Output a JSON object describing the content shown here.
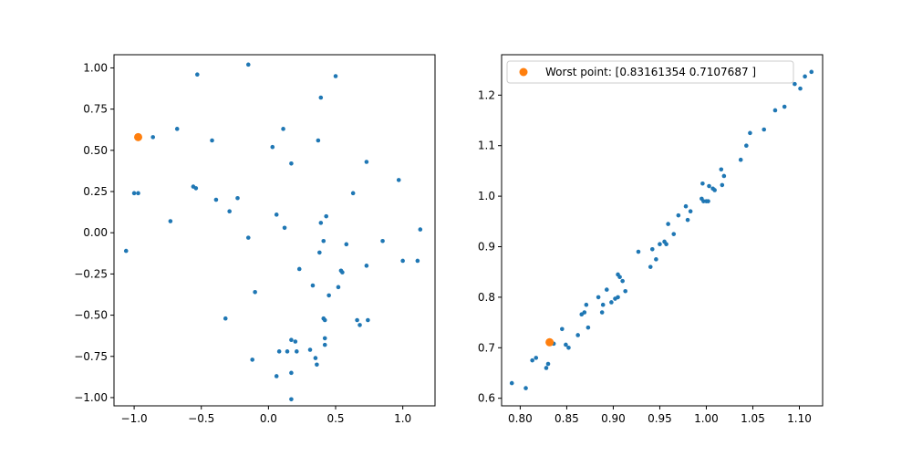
{
  "chart_data": [
    {
      "type": "scatter",
      "title": "",
      "xlabel": "",
      "ylabel": "",
      "xlim": [
        -1.15,
        1.24
      ],
      "ylim": [
        -1.05,
        1.08
      ],
      "xticks": [
        "−1.0",
        "−0.5",
        "0.0",
        "0.5",
        "1.0"
      ],
      "xtick_values": [
        -1.0,
        -0.5,
        0.0,
        0.5,
        1.0
      ],
      "yticks": [
        "−1.00",
        "−0.75",
        "−0.50",
        "−0.25",
        "0.00",
        "0.25",
        "0.50",
        "0.75",
        "1.00"
      ],
      "ytick_values": [
        -1.0,
        -0.75,
        -0.5,
        -0.25,
        0.0,
        0.25,
        0.5,
        0.75,
        1.0
      ],
      "grid": false,
      "series": [
        {
          "color": "#1f77b4",
          "marker_size": "small",
          "points": [
            [
              -1.06,
              -0.11
            ],
            [
              -1.0,
              0.24
            ],
            [
              -0.97,
              0.24
            ],
            [
              -0.86,
              0.58
            ],
            [
              -0.73,
              0.07
            ],
            [
              -0.68,
              0.63
            ],
            [
              -0.56,
              0.28
            ],
            [
              -0.54,
              0.27
            ],
            [
              -0.53,
              0.96
            ],
            [
              -0.42,
              0.56
            ],
            [
              -0.39,
              0.2
            ],
            [
              -0.29,
              0.13
            ],
            [
              -0.23,
              0.21
            ],
            [
              -0.32,
              -0.52
            ],
            [
              -0.15,
              1.02
            ],
            [
              -0.15,
              -0.03
            ],
            [
              -0.12,
              -0.77
            ],
            [
              -0.1,
              -0.36
            ],
            [
              0.03,
              0.52
            ],
            [
              0.06,
              0.11
            ],
            [
              0.08,
              -0.72
            ],
            [
              0.06,
              -0.87
            ],
            [
              0.11,
              0.63
            ],
            [
              0.12,
              0.03
            ],
            [
              0.14,
              -0.72
            ],
            [
              0.17,
              0.42
            ],
            [
              0.17,
              -0.65
            ],
            [
              0.2,
              -0.66
            ],
            [
              0.17,
              -0.85
            ],
            [
              0.17,
              -1.01
            ],
            [
              0.21,
              -0.72
            ],
            [
              0.23,
              -0.22
            ],
            [
              0.31,
              -0.71
            ],
            [
              0.33,
              -0.32
            ],
            [
              0.35,
              -0.76
            ],
            [
              0.36,
              -0.8
            ],
            [
              0.37,
              0.56
            ],
            [
              0.38,
              -0.12
            ],
            [
              0.39,
              0.82
            ],
            [
              0.39,
              0.06
            ],
            [
              0.41,
              -0.05
            ],
            [
              0.41,
              -0.52
            ],
            [
              0.42,
              -0.53
            ],
            [
              0.42,
              -0.64
            ],
            [
              0.42,
              -0.68
            ],
            [
              0.43,
              0.1
            ],
            [
              0.45,
              -0.38
            ],
            [
              0.5,
              0.95
            ],
            [
              0.52,
              -0.33
            ],
            [
              0.54,
              -0.23
            ],
            [
              0.55,
              -0.24
            ],
            [
              0.58,
              -0.07
            ],
            [
              0.63,
              0.24
            ],
            [
              0.66,
              -0.53
            ],
            [
              0.68,
              -0.56
            ],
            [
              0.73,
              -0.2
            ],
            [
              0.73,
              0.43
            ],
            [
              0.74,
              -0.53
            ],
            [
              0.85,
              -0.05
            ],
            [
              0.97,
              0.32
            ],
            [
              1.0,
              -0.17
            ],
            [
              1.11,
              -0.17
            ],
            [
              1.13,
              0.02
            ]
          ]
        },
        {
          "color": "#ff7f0e",
          "marker_size": "large",
          "points": [
            [
              -0.97,
              0.58
            ]
          ]
        }
      ]
    },
    {
      "type": "scatter",
      "title": "",
      "xlabel": "",
      "ylabel": "",
      "xlim": [
        0.78,
        1.125
      ],
      "ylim": [
        0.585,
        1.28
      ],
      "xticks": [
        "0.80",
        "0.85",
        "0.90",
        "0.95",
        "1.00",
        "1.05",
        "1.10"
      ],
      "xtick_values": [
        0.8,
        0.85,
        0.9,
        0.95,
        1.0,
        1.05,
        1.1
      ],
      "yticks": [
        "0.6",
        "0.7",
        "0.8",
        "0.9",
        "1.0",
        "1.1",
        "1.2"
      ],
      "ytick_values": [
        0.6,
        0.7,
        0.8,
        0.9,
        1.0,
        1.1,
        1.2
      ],
      "grid": false,
      "legend": {
        "placement": "upper-left",
        "entries": [
          {
            "label": "Worst point: [0.83161354 0.7107687 ]",
            "color": "#ff7f0e"
          }
        ]
      },
      "series": [
        {
          "color": "#1f77b4",
          "marker_size": "small",
          "points": [
            [
              0.791,
              0.63
            ],
            [
              0.806,
              0.62
            ],
            [
              0.813,
              0.675
            ],
            [
              0.817,
              0.68
            ],
            [
              0.828,
              0.66
            ],
            [
              0.83,
              0.668
            ],
            [
              0.836,
              0.708
            ],
            [
              0.845,
              0.737
            ],
            [
              0.849,
              0.706
            ],
            [
              0.852,
              0.7
            ],
            [
              0.862,
              0.725
            ],
            [
              0.866,
              0.766
            ],
            [
              0.869,
              0.77
            ],
            [
              0.871,
              0.785
            ],
            [
              0.873,
              0.74
            ],
            [
              0.884,
              0.8
            ],
            [
              0.888,
              0.77
            ],
            [
              0.889,
              0.785
            ],
            [
              0.893,
              0.815
            ],
            [
              0.898,
              0.79
            ],
            [
              0.902,
              0.797
            ],
            [
              0.905,
              0.8
            ],
            [
              0.905,
              0.845
            ],
            [
              0.907,
              0.84
            ],
            [
              0.91,
              0.832
            ],
            [
              0.913,
              0.812
            ],
            [
              0.927,
              0.89
            ],
            [
              0.94,
              0.86
            ],
            [
              0.942,
              0.895
            ],
            [
              0.946,
              0.875
            ],
            [
              0.95,
              0.905
            ],
            [
              0.955,
              0.91
            ],
            [
              0.957,
              0.905
            ],
            [
              0.959,
              0.945
            ],
            [
              0.965,
              0.925
            ],
            [
              0.97,
              0.962
            ],
            [
              0.978,
              0.98
            ],
            [
              0.98,
              0.953
            ],
            [
              0.983,
              0.97
            ],
            [
              0.995,
              0.995
            ],
            [
              0.996,
              1.025
            ],
            [
              0.997,
              0.99
            ],
            [
              1.0,
              0.99
            ],
            [
              1.002,
              0.99
            ],
            [
              1.003,
              1.02
            ],
            [
              1.007,
              1.015
            ],
            [
              1.009,
              1.012
            ],
            [
              1.016,
              1.053
            ],
            [
              1.017,
              1.022
            ],
            [
              1.019,
              1.04
            ],
            [
              1.037,
              1.072
            ],
            [
              1.043,
              1.1
            ],
            [
              1.047,
              1.125
            ],
            [
              1.062,
              1.132
            ],
            [
              1.074,
              1.17
            ],
            [
              1.084,
              1.177
            ],
            [
              1.095,
              1.222
            ],
            [
              1.101,
              1.213
            ],
            [
              1.106,
              1.237
            ],
            [
              1.113,
              1.246
            ]
          ]
        },
        {
          "color": "#ff7f0e",
          "marker_size": "large",
          "points": [
            [
              0.8316,
              0.7108
            ]
          ]
        }
      ]
    }
  ]
}
